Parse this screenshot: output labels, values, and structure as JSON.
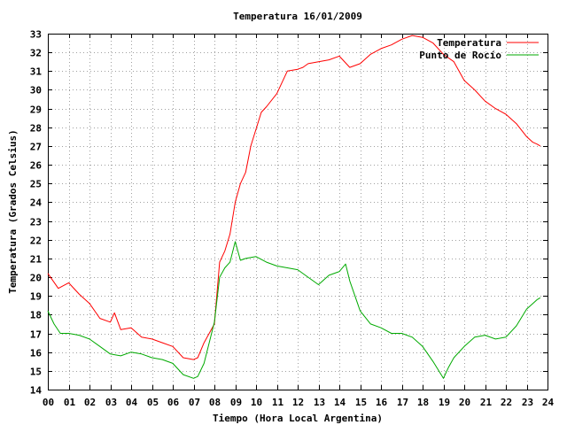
{
  "chart_data": {
    "type": "line",
    "title": "Temperatura 16/01/2009",
    "xlabel": "Tiempo (Hora Local Argentina)",
    "ylabel": "Temperatura (Grados Celsius)",
    "xlim": [
      0,
      24
    ],
    "ylim": [
      14,
      33
    ],
    "x_ticks": [
      "00",
      "01",
      "02",
      "03",
      "04",
      "05",
      "06",
      "07",
      "08",
      "09",
      "10",
      "11",
      "12",
      "13",
      "14",
      "15",
      "16",
      "17",
      "18",
      "19",
      "20",
      "21",
      "22",
      "23",
      "24"
    ],
    "y_ticks": [
      14,
      15,
      16,
      17,
      18,
      19,
      20,
      21,
      22,
      23,
      24,
      25,
      26,
      27,
      28,
      29,
      30,
      31,
      32,
      33
    ],
    "grid": true,
    "legend_position": "top-right",
    "series": [
      {
        "name": "Temperatura",
        "color": "#ff0000",
        "x": [
          0,
          0.5,
          1,
          1.5,
          2,
          2.5,
          3,
          3.2,
          3.5,
          4,
          4.5,
          5,
          5.5,
          6,
          6.5,
          7,
          7.2,
          7.5,
          8,
          8.25,
          8.5,
          8.75,
          9,
          9.25,
          9.5,
          9.75,
          10,
          10.25,
          10.5,
          11,
          11.5,
          12,
          12.25,
          12.5,
          13,
          13.5,
          14,
          14.5,
          15,
          15.5,
          16,
          16.5,
          17,
          17.5,
          18,
          18.5,
          19,
          19.5,
          20,
          20.5,
          21,
          21.5,
          22,
          22.5,
          23,
          23.3,
          23.5,
          23.65
        ],
        "y": [
          20.2,
          19.4,
          19.7,
          19.1,
          18.6,
          17.8,
          17.6,
          18.1,
          17.2,
          17.3,
          16.8,
          16.7,
          16.5,
          16.3,
          15.7,
          15.6,
          15.7,
          16.5,
          17.5,
          20.8,
          21.4,
          22.3,
          24.0,
          25.0,
          25.6,
          27.0,
          27.9,
          28.8,
          29.1,
          29.8,
          31.0,
          31.1,
          31.2,
          31.4,
          31.5,
          31.6,
          31.8,
          31.2,
          31.4,
          31.9,
          32.2,
          32.4,
          32.7,
          32.9,
          32.8,
          32.5,
          31.9,
          31.5,
          30.5,
          30.0,
          29.4,
          29.0,
          28.7,
          28.2,
          27.5,
          27.2,
          27.1,
          27.0
        ]
      },
      {
        "name": "Punto de Rocío",
        "color": "#00aa00",
        "x": [
          0,
          0.3,
          0.6,
          1,
          1.5,
          2,
          2.5,
          3,
          3.5,
          4,
          4.5,
          5,
          5.5,
          6,
          6.5,
          7,
          7.2,
          7.5,
          8,
          8.25,
          8.5,
          8.75,
          9,
          9.25,
          9.5,
          10,
          10.5,
          11,
          11.5,
          12,
          12.5,
          13,
          13.5,
          14,
          14.3,
          14.5,
          15,
          15.5,
          16,
          16.5,
          17,
          17.5,
          18,
          18.5,
          19,
          19.25,
          19.5,
          20,
          20.5,
          21,
          21.5,
          22,
          22.5,
          23,
          23.3,
          23.5,
          23.65
        ],
        "y": [
          18.2,
          17.5,
          17.0,
          17.0,
          16.9,
          16.7,
          16.3,
          15.9,
          15.8,
          16.0,
          15.9,
          15.7,
          15.6,
          15.4,
          14.8,
          14.6,
          14.7,
          15.4,
          17.6,
          20.0,
          20.5,
          20.8,
          21.9,
          20.9,
          21.0,
          21.1,
          20.8,
          20.6,
          20.5,
          20.4,
          20.0,
          19.6,
          20.1,
          20.3,
          20.7,
          19.8,
          18.2,
          17.5,
          17.3,
          17.0,
          17.0,
          16.8,
          16.3,
          15.5,
          14.6,
          15.2,
          15.7,
          16.3,
          16.8,
          16.9,
          16.7,
          16.8,
          17.4,
          18.3,
          18.6,
          18.8,
          18.9
        ]
      }
    ]
  }
}
